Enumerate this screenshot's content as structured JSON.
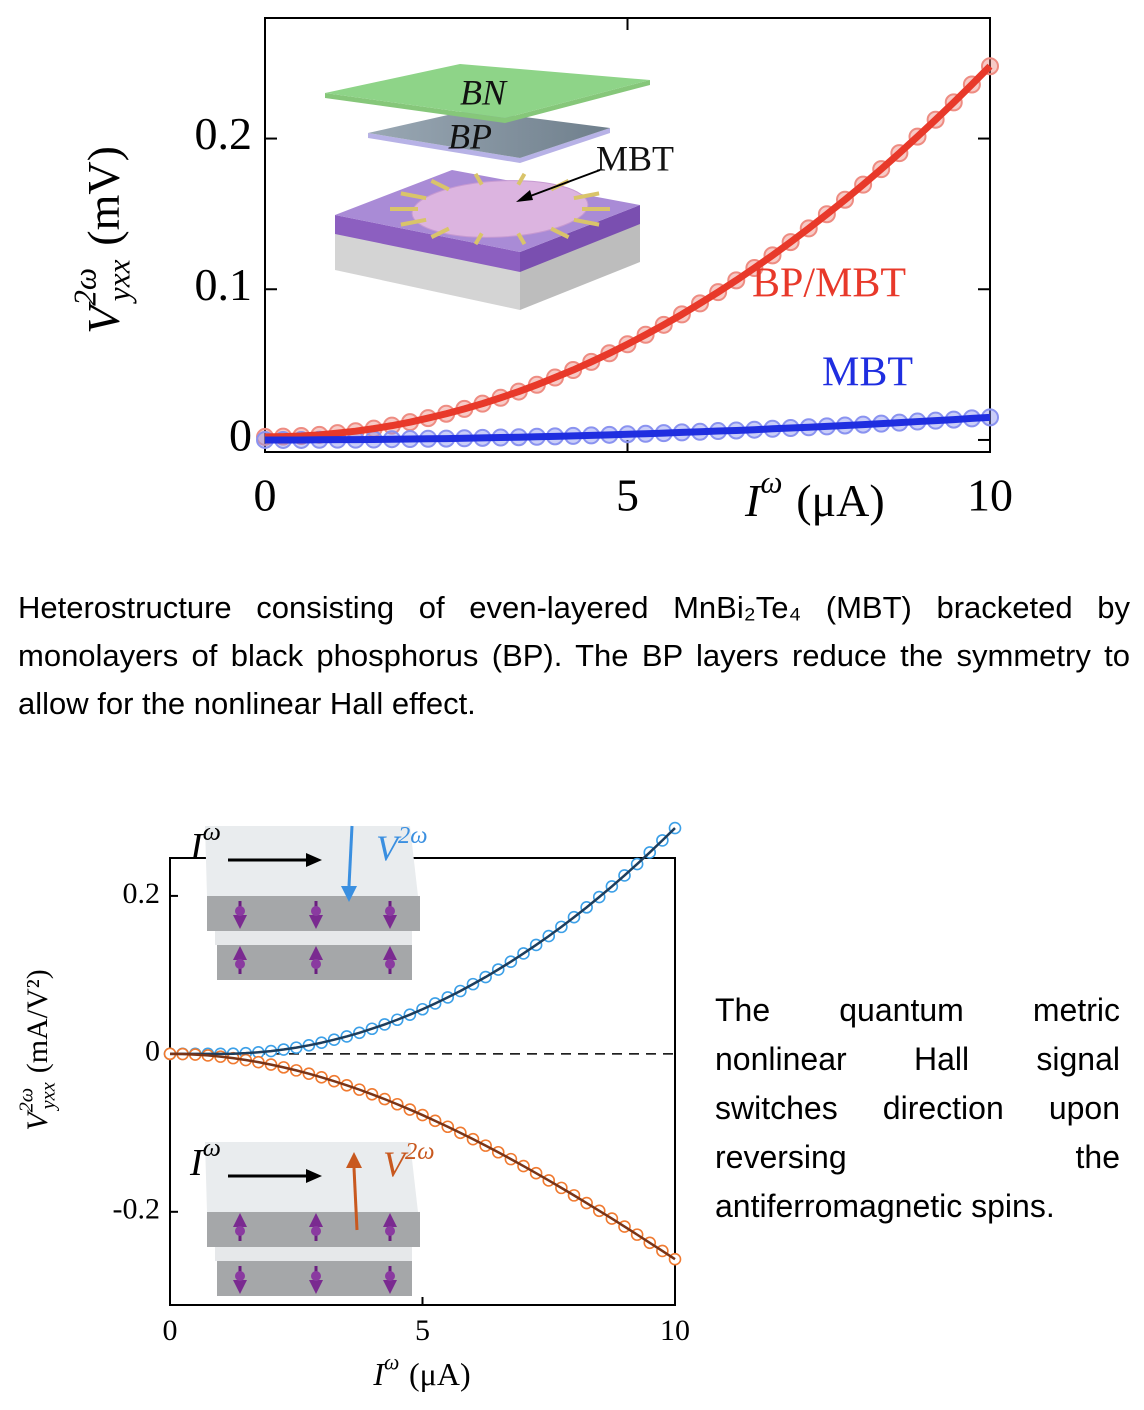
{
  "chart_data": [
    {
      "type": "scatter",
      "xlabel": {
        "symbol": "I",
        "superscript": "ω",
        "unit": "(μA)"
      },
      "ylabel": {
        "symbol": "V",
        "superscript": "2ω",
        "subscript": "yxx",
        "unit": "(mV)"
      },
      "x": [
        0,
        0.25,
        0.5,
        0.75,
        1,
        1.25,
        1.5,
        1.75,
        2,
        2.25,
        2.5,
        2.75,
        3,
        3.25,
        3.5,
        3.75,
        4,
        4.25,
        4.5,
        4.75,
        5,
        5.25,
        5.5,
        5.75,
        6,
        6.25,
        6.5,
        6.75,
        7,
        7.25,
        7.5,
        7.75,
        8,
        8.25,
        8.5,
        8.75,
        9,
        9.25,
        9.5,
        9.75,
        10
      ],
      "xlim": [
        0,
        10
      ],
      "ylim": [
        -0.008,
        0.28
      ],
      "xticks": [
        0,
        5,
        10
      ],
      "yticks": [
        0,
        0.1,
        0.2
      ],
      "markers_filled": true,
      "series": [
        {
          "name": "BP/MBT",
          "color": "#ee8c82",
          "line_color": "#e8392a",
          "values": [
            0.002,
            0.0022,
            0.0026,
            0.0034,
            0.0045,
            0.0058,
            0.0075,
            0.0095,
            0.0118,
            0.0145,
            0.0174,
            0.0206,
            0.0241,
            0.028,
            0.0321,
            0.0366,
            0.0414,
            0.0464,
            0.0518,
            0.0575,
            0.0635,
            0.0698,
            0.0764,
            0.0833,
            0.0906,
            0.0981,
            0.1059,
            0.1141,
            0.1225,
            0.1313,
            0.1404,
            0.1498,
            0.1594,
            0.1694,
            0.1797,
            0.1903,
            0.2013,
            0.2125,
            0.224,
            0.2359,
            0.248
          ]
        },
        {
          "name": "MBT",
          "color": "#8a93f0",
          "line_color": "#1f2ee0",
          "values": [
            0,
            0,
            0,
            0.0001,
            0.0002,
            0.0002,
            0.0003,
            0.0005,
            0.0006,
            0.0008,
            0.0009,
            0.0011,
            0.0014,
            0.0016,
            0.0018,
            0.0021,
            0.0024,
            0.0027,
            0.003,
            0.0034,
            0.0038,
            0.0041,
            0.0045,
            0.005,
            0.0054,
            0.0059,
            0.0063,
            0.0068,
            0.0074,
            0.0079,
            0.0084,
            0.009,
            0.0096,
            0.0102,
            0.0108,
            0.0115,
            0.0122,
            0.0128,
            0.0135,
            0.0143,
            0.015
          ]
        }
      ],
      "inset": {
        "labels": [
          "BN",
          "BP",
          "MBT"
        ]
      }
    },
    {
      "type": "scatter",
      "xlabel": {
        "symbol": "I",
        "superscript": "ω",
        "unit": "(μA)"
      },
      "ylabel": {
        "symbol": "V",
        "superscript": "2ω",
        "subscript": "yxx",
        "unit": "(mA/V²)"
      },
      "x": [
        0,
        0.25,
        0.5,
        0.75,
        1,
        1.25,
        1.5,
        1.75,
        2,
        2.25,
        2.5,
        2.75,
        3,
        3.25,
        3.5,
        3.75,
        4,
        4.25,
        4.5,
        4.75,
        5,
        5.25,
        5.5,
        5.75,
        6,
        6.25,
        6.5,
        6.75,
        7,
        7.25,
        7.5,
        7.75,
        8,
        8.25,
        8.5,
        8.75,
        9,
        9.25,
        9.5,
        9.75,
        10
      ],
      "xlim": [
        0,
        10
      ],
      "ylim": [
        -0.318,
        0.248
      ],
      "xticks": [
        0,
        5,
        10
      ],
      "yticks": [
        -0.2,
        0,
        0.2
      ],
      "markers_filled": false,
      "zero_line": true,
      "series": [
        {
          "color": "#3ca0e8",
          "line_color": "#1d3d5c",
          "values": [
            0,
            0,
            0,
            0,
            0,
            0.0002,
            0.0009,
            0.002,
            0.0035,
            0.0055,
            0.0079,
            0.0108,
            0.0141,
            0.0179,
            0.0221,
            0.0267,
            0.0318,
            0.0373,
            0.0432,
            0.0496,
            0.0565,
            0.0638,
            0.0715,
            0.0796,
            0.0883,
            0.0973,
            0.1068,
            0.1167,
            0.1271,
            0.1379,
            0.1491,
            0.1608,
            0.173,
            0.1855,
            0.1986,
            0.212,
            0.2259,
            0.2403,
            0.255,
            0.2703,
            0.2859
          ]
        },
        {
          "color": "#f07a30",
          "line_color": "#7a3416",
          "values": [
            0,
            -0.0002,
            -0.0009,
            -0.002,
            -0.0035,
            -0.0054,
            -0.0078,
            -0.0105,
            -0.0136,
            -0.0171,
            -0.0209,
            -0.0251,
            -0.0297,
            -0.0346,
            -0.0398,
            -0.0453,
            -0.0512,
            -0.0573,
            -0.0638,
            -0.0705,
            -0.0775,
            -0.0848,
            -0.0923,
            -0.1,
            -0.108,
            -0.1162,
            -0.1246,
            -0.1333,
            -0.1421,
            -0.1511,
            -0.1603,
            -0.1697,
            -0.1792,
            -0.1889,
            -0.1987,
            -0.2086,
            -0.2187,
            -0.2289,
            -0.2392,
            -0.2495,
            -0.26
          ]
        }
      ],
      "insets": [
        {
          "current": {
            "symbol": "I",
            "superscript": "ω"
          },
          "voltage": {
            "symbol": "V",
            "superscript": "2ω"
          },
          "color": "#3a8fe0"
        },
        {
          "current": {
            "symbol": "I",
            "superscript": "ω"
          },
          "voltage": {
            "symbol": "V",
            "superscript": "2ω"
          },
          "color": "#c8581e"
        }
      ]
    }
  ],
  "captions": [
    "Heterostructure consisting of even-layered MnBi₂Te₄ (MBT) bracketed by monolayers of black phosphorus (BP). The BP layers reduce the symmetry to allow for the nonlinear Hall effect.",
    "The quantum metric nonlinear Hall signal switches direction upon reversing the antiferromagnetic spins."
  ]
}
